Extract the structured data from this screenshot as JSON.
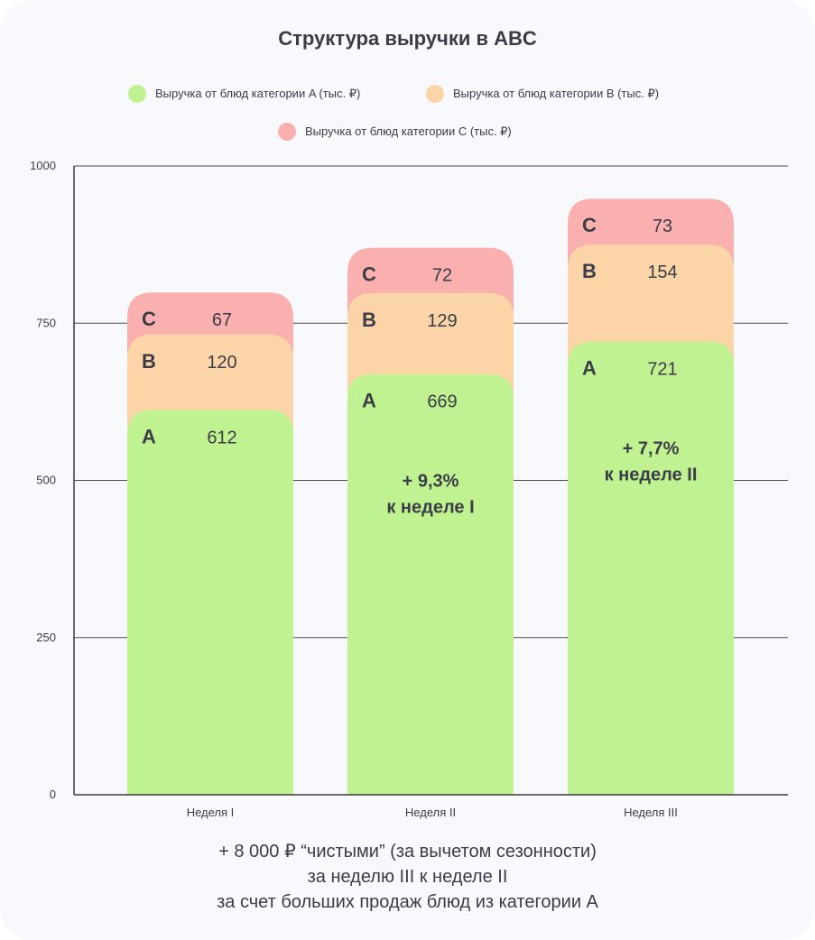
{
  "chart_data": {
    "type": "bar",
    "stacked": true,
    "title": "Структура выручки в ABC",
    "categories": [
      "Неделя I",
      "Неделя II",
      "Неделя III"
    ],
    "series": [
      {
        "name": "Выручка от блюд категории A (тыс. ₽)",
        "letter": "A",
        "color": "#c1f291",
        "values": [
          612,
          669,
          721
        ]
      },
      {
        "name": "Выручка от блюд категории B (тыс. ₽)",
        "letter": "B",
        "color": "#fbd5a7",
        "values": [
          120,
          129,
          154
        ]
      },
      {
        "name": "Выручка от блюд категории C (тыс. ₽)",
        "letter": "C",
        "color": "#fbb0b0",
        "values": [
          67,
          72,
          73
        ]
      }
    ],
    "yticks": [
      "0",
      "250",
      "500",
      "750",
      "1000"
    ],
    "ylim": [
      0,
      1000
    ],
    "annotations": [
      {
        "category": "Неделя II",
        "lines": [
          "+ 9,3%",
          "к неделе I"
        ]
      },
      {
        "category": "Неделя III",
        "lines": [
          "+ 7,7%",
          "к неделе II"
        ]
      }
    ],
    "legend_placement": "top"
  },
  "footer": {
    "line1": "+ 8 000 ₽ “чистыми” (за вычетом сезонности)",
    "line2": "за неделю III к неделе II",
    "line3": "за счет больших продаж блюд из категории A"
  },
  "colors": {
    "background": "#f8f9fd",
    "text": "#3a3d47",
    "grid": "#4a4a4a"
  }
}
